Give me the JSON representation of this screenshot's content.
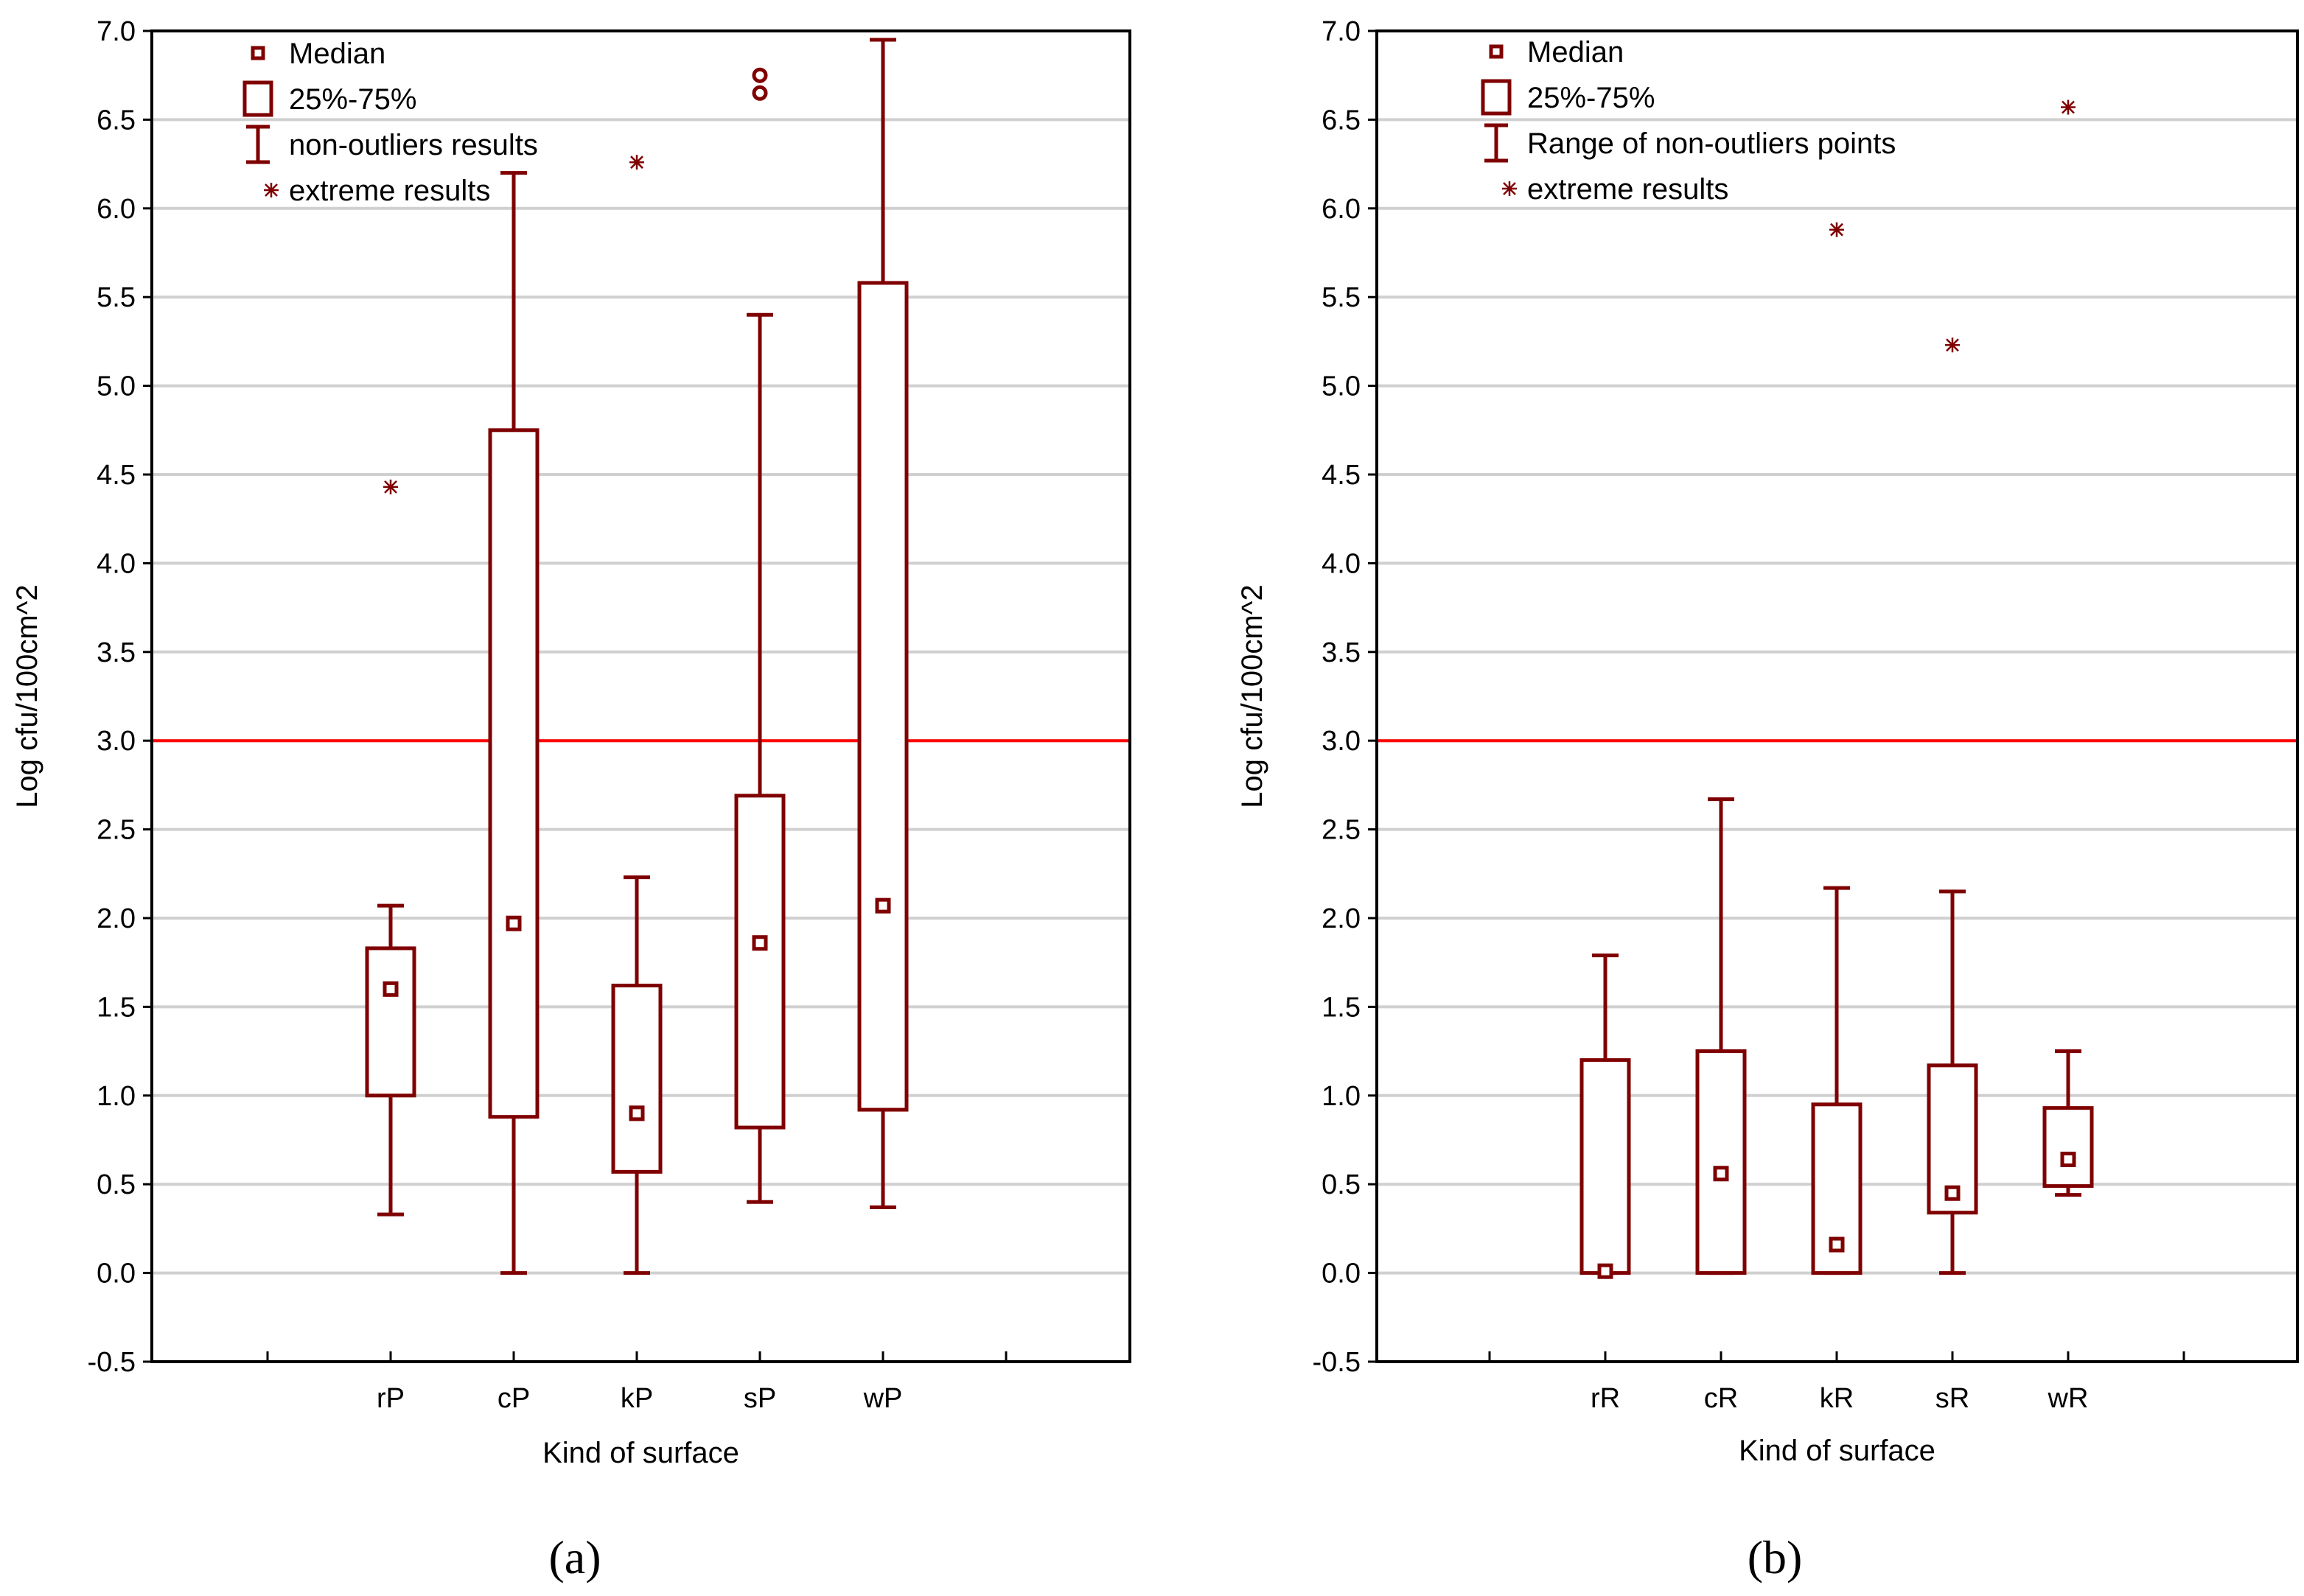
{
  "chart_data": [
    {
      "type": "boxplot",
      "panel_label": "(a)",
      "xlabel": "Kind of surface",
      "ylabel": "Log cfu/100cm^2",
      "ylim": [
        -0.5,
        7.0
      ],
      "yticks": [
        "7.0",
        "6.5",
        "6.0",
        "5.5",
        "5.0",
        "4.5",
        "4.0",
        "3.5",
        "3.0",
        "2.5",
        "2.0",
        "1.5",
        "1.0",
        "0.5",
        "0.0",
        "-0.5"
      ],
      "threshold": 3.0,
      "legend": [
        "Median",
        "25%-75%",
        "non-outliers results",
        "extreme results"
      ],
      "categories": [
        "rP",
        "cP",
        "kP",
        "sP",
        "wP"
      ],
      "boxes": [
        {
          "median": 1.6,
          "q1": 1.0,
          "q3": 1.83,
          "whisker_low": 0.33,
          "whisker_high": 2.07,
          "outliers": [],
          "extremes": [
            4.43
          ]
        },
        {
          "median": 1.97,
          "q1": 0.88,
          "q3": 4.75,
          "whisker_low": 0.0,
          "whisker_high": 6.2,
          "outliers": [],
          "extremes": []
        },
        {
          "median": 0.9,
          "q1": 0.57,
          "q3": 1.62,
          "whisker_low": 0.0,
          "whisker_high": 2.23,
          "outliers": [],
          "extremes": [
            6.26
          ]
        },
        {
          "median": 1.86,
          "q1": 0.82,
          "q3": 2.69,
          "whisker_low": 0.4,
          "whisker_high": 5.4,
          "outliers": [
            6.75,
            6.65
          ],
          "extremes": []
        },
        {
          "median": 2.07,
          "q1": 0.92,
          "q3": 5.58,
          "whisker_low": 0.37,
          "whisker_high": 6.95,
          "outliers": [],
          "extremes": []
        }
      ]
    },
    {
      "type": "boxplot",
      "panel_label": "(b)",
      "xlabel": "Kind of surface",
      "ylabel": "Log cfu/100cm^2",
      "ylim": [
        -0.5,
        7.0
      ],
      "yticks": [
        "7.0",
        "6.5",
        "6.0",
        "5.5",
        "5.0",
        "4.5",
        "4.0",
        "3.5",
        "3.0",
        "2.5",
        "2.0",
        "1.5",
        "1.0",
        "0.5",
        "0.0",
        "-0.5"
      ],
      "threshold": 3.0,
      "legend": [
        "Median",
        "25%-75%",
        "Range of  non-outliers points",
        "extreme results"
      ],
      "categories": [
        "rR",
        "cR",
        "kR",
        "sR",
        "wR"
      ],
      "boxes": [
        {
          "median": 0.01,
          "q1": 0.0,
          "q3": 1.2,
          "whisker_low": 0.0,
          "whisker_high": 1.79,
          "outliers": [],
          "extremes": []
        },
        {
          "median": 0.56,
          "q1": 0.0,
          "q3": 1.25,
          "whisker_low": 0.0,
          "whisker_high": 2.67,
          "outliers": [],
          "extremes": []
        },
        {
          "median": 0.16,
          "q1": 0.0,
          "q3": 0.95,
          "whisker_low": 0.0,
          "whisker_high": 2.17,
          "outliers": [],
          "extremes": [
            5.88
          ]
        },
        {
          "median": 0.45,
          "q1": 0.34,
          "q3": 1.17,
          "whisker_low": 0.0,
          "whisker_high": 2.15,
          "outliers": [],
          "extremes": [
            5.23
          ]
        },
        {
          "median": 0.64,
          "q1": 0.49,
          "q3": 0.93,
          "whisker_low": 0.44,
          "whisker_high": 1.25,
          "outliers": [],
          "extremes": [
            6.57
          ]
        }
      ]
    }
  ]
}
